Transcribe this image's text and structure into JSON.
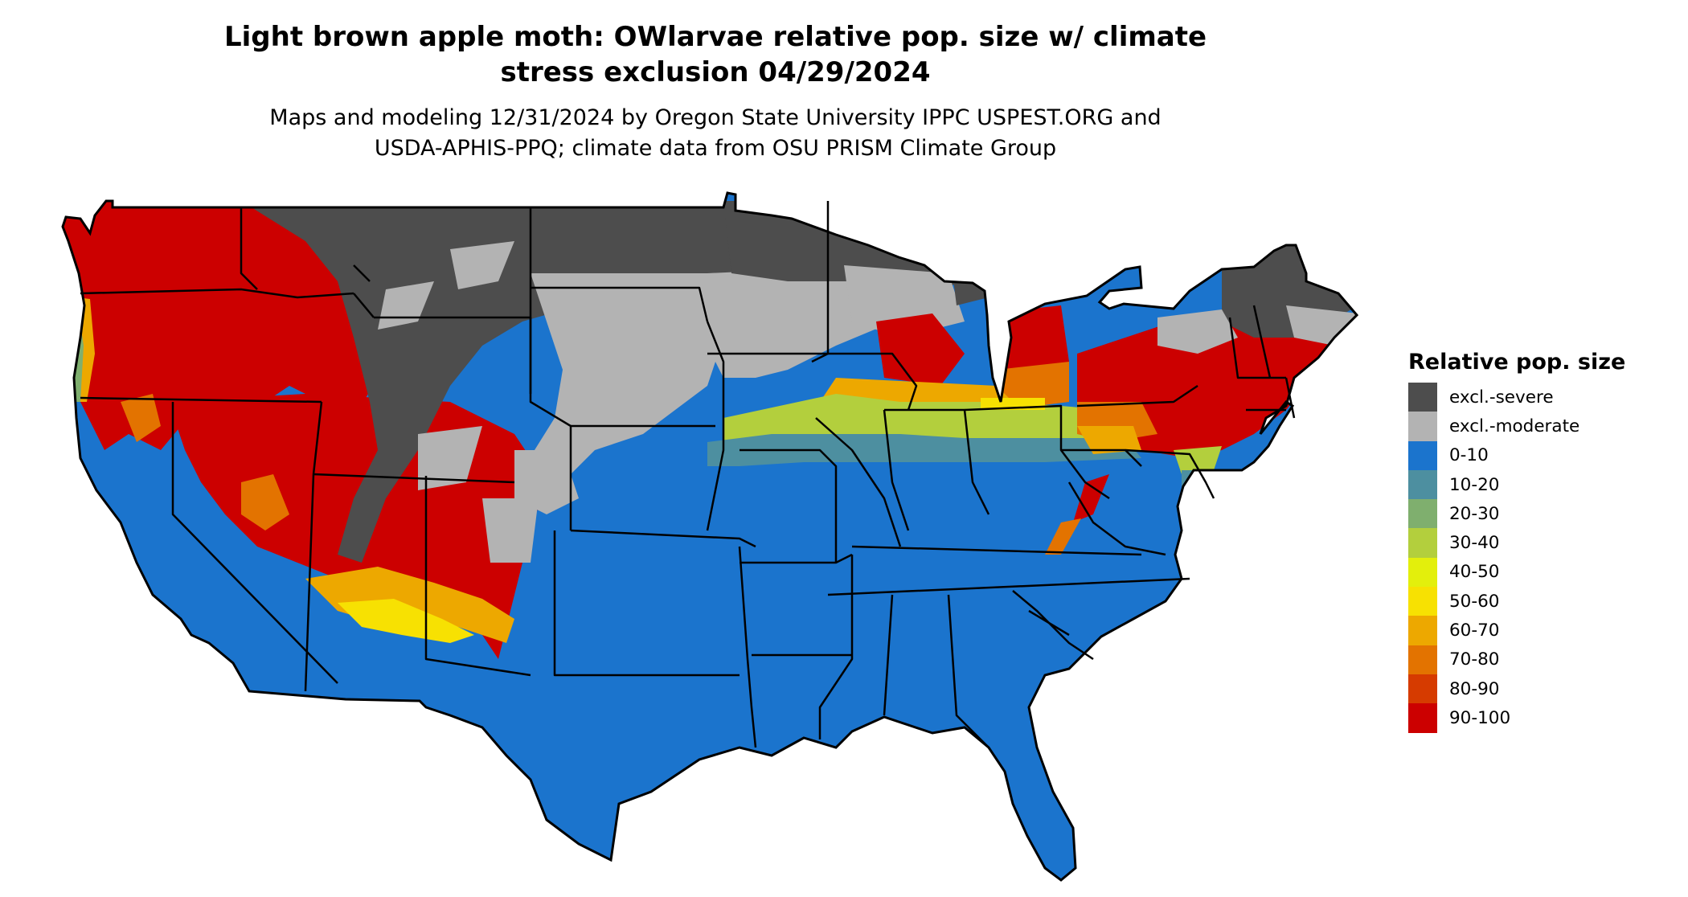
{
  "title": {
    "line1": "Light brown apple moth: OWlarvae relative pop. size w/ climate",
    "line2": "stress exclusion 04/29/2024"
  },
  "subtitle": {
    "line1": "Maps and modeling 12/31/2024 by Oregon State University IPPC USPEST.ORG and",
    "line2": "USDA-APHIS-PPQ; climate data from OSU PRISM Climate Group"
  },
  "legend": {
    "title": "Relative pop. size",
    "items": [
      {
        "label": "excl.-severe",
        "color": "#4d4d4d"
      },
      {
        "label": "excl.-moderate",
        "color": "#b3b3b3"
      },
      {
        "label": "0-10",
        "color": "#1b74cd"
      },
      {
        "label": "10-20",
        "color": "#4d8fa0"
      },
      {
        "label": "20-30",
        "color": "#7faf6e"
      },
      {
        "label": "30-40",
        "color": "#b3cf3d"
      },
      {
        "label": "40-50",
        "color": "#e3ef0c"
      },
      {
        "label": "50-60",
        "color": "#f7e102"
      },
      {
        "label": "60-70",
        "color": "#eda800"
      },
      {
        "label": "70-80",
        "color": "#e37300"
      },
      {
        "label": "80-90",
        "color": "#d63b00"
      },
      {
        "label": "90-100",
        "color": "#cc0000"
      }
    ]
  }
}
